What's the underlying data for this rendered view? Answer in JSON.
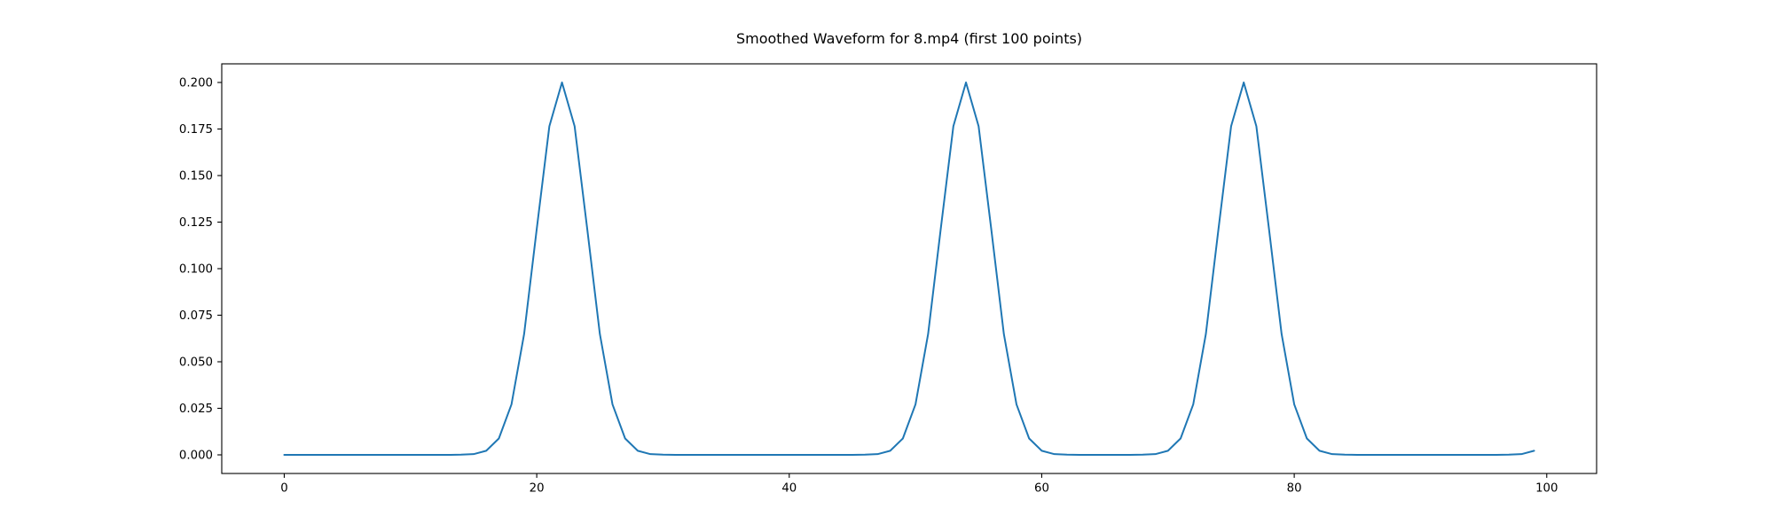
{
  "chart_data": {
    "type": "line",
    "title": "Smoothed Waveform for 8.mp4 (first 100 points)",
    "xlabel": "",
    "ylabel": "",
    "grid": false,
    "legend": null,
    "line_color": "#1f77b4",
    "background_color": "#ffffff",
    "spine_color": "#000000",
    "xlim": [
      -4.95,
      103.95
    ],
    "ylim": [
      -0.01,
      0.21
    ],
    "xticks": [
      0,
      20,
      40,
      60,
      80,
      100
    ],
    "xtick_labels": [
      "0",
      "20",
      "40",
      "60",
      "80",
      "100"
    ],
    "yticks": [
      0.0,
      0.025,
      0.05,
      0.075,
      0.1,
      0.125,
      0.15,
      0.175,
      0.2
    ],
    "ytick_labels": [
      "0.000",
      "0.025",
      "0.050",
      "0.075",
      "0.100",
      "0.125",
      "0.150",
      "0.175",
      "0.200"
    ],
    "peaks": [
      {
        "x": 22,
        "y": 0.2
      },
      {
        "x": 54,
        "y": 0.2
      },
      {
        "x": 76,
        "y": 0.2
      }
    ],
    "x": [
      0,
      1,
      2,
      3,
      4,
      5,
      6,
      7,
      8,
      9,
      10,
      11,
      12,
      13,
      14,
      15,
      16,
      17,
      18,
      19,
      20,
      21,
      22,
      23,
      24,
      25,
      26,
      27,
      28,
      29,
      30,
      31,
      32,
      33,
      34,
      35,
      36,
      37,
      38,
      39,
      40,
      41,
      42,
      43,
      44,
      45,
      46,
      47,
      48,
      49,
      50,
      51,
      52,
      53,
      54,
      55,
      56,
      57,
      58,
      59,
      60,
      61,
      62,
      63,
      64,
      65,
      66,
      67,
      68,
      69,
      70,
      71,
      72,
      73,
      74,
      75,
      76,
      77,
      78,
      79,
      80,
      81,
      82,
      83,
      84,
      85,
      86,
      87,
      88,
      89,
      90,
      91,
      92,
      93,
      94,
      95,
      96,
      97,
      98,
      99
    ],
    "y": [
      0,
      0,
      0,
      0,
      0,
      0,
      0,
      0,
      0,
      0,
      0,
      0,
      0,
      0,
      0.0001,
      0.0004,
      0.0022,
      0.0088,
      0.0271,
      0.0649,
      0.1213,
      0.1765,
      0.2,
      0.1765,
      0.1213,
      0.0649,
      0.0271,
      0.0088,
      0.0022,
      0.0004,
      0.0001,
      0,
      0,
      0,
      0,
      0,
      0,
      0,
      0,
      0,
      0,
      0,
      0,
      0,
      0,
      0,
      0.0001,
      0.0004,
      0.0022,
      0.0088,
      0.0271,
      0.0649,
      0.1213,
      0.1765,
      0.2,
      0.1765,
      0.1213,
      0.0649,
      0.0271,
      0.0088,
      0.0022,
      0.0004,
      0.0001,
      0,
      0,
      0,
      0,
      0,
      0.0001,
      0.0004,
      0.0022,
      0.0088,
      0.0271,
      0.0649,
      0.1213,
      0.1765,
      0.2,
      0.1765,
      0.1213,
      0.0649,
      0.0271,
      0.0088,
      0.0022,
      0.0004,
      0.0001,
      0,
      0,
      0,
      0,
      0,
      0,
      0,
      0,
      0,
      0,
      0,
      0,
      0.0001,
      0.0004,
      0.0022
    ]
  }
}
